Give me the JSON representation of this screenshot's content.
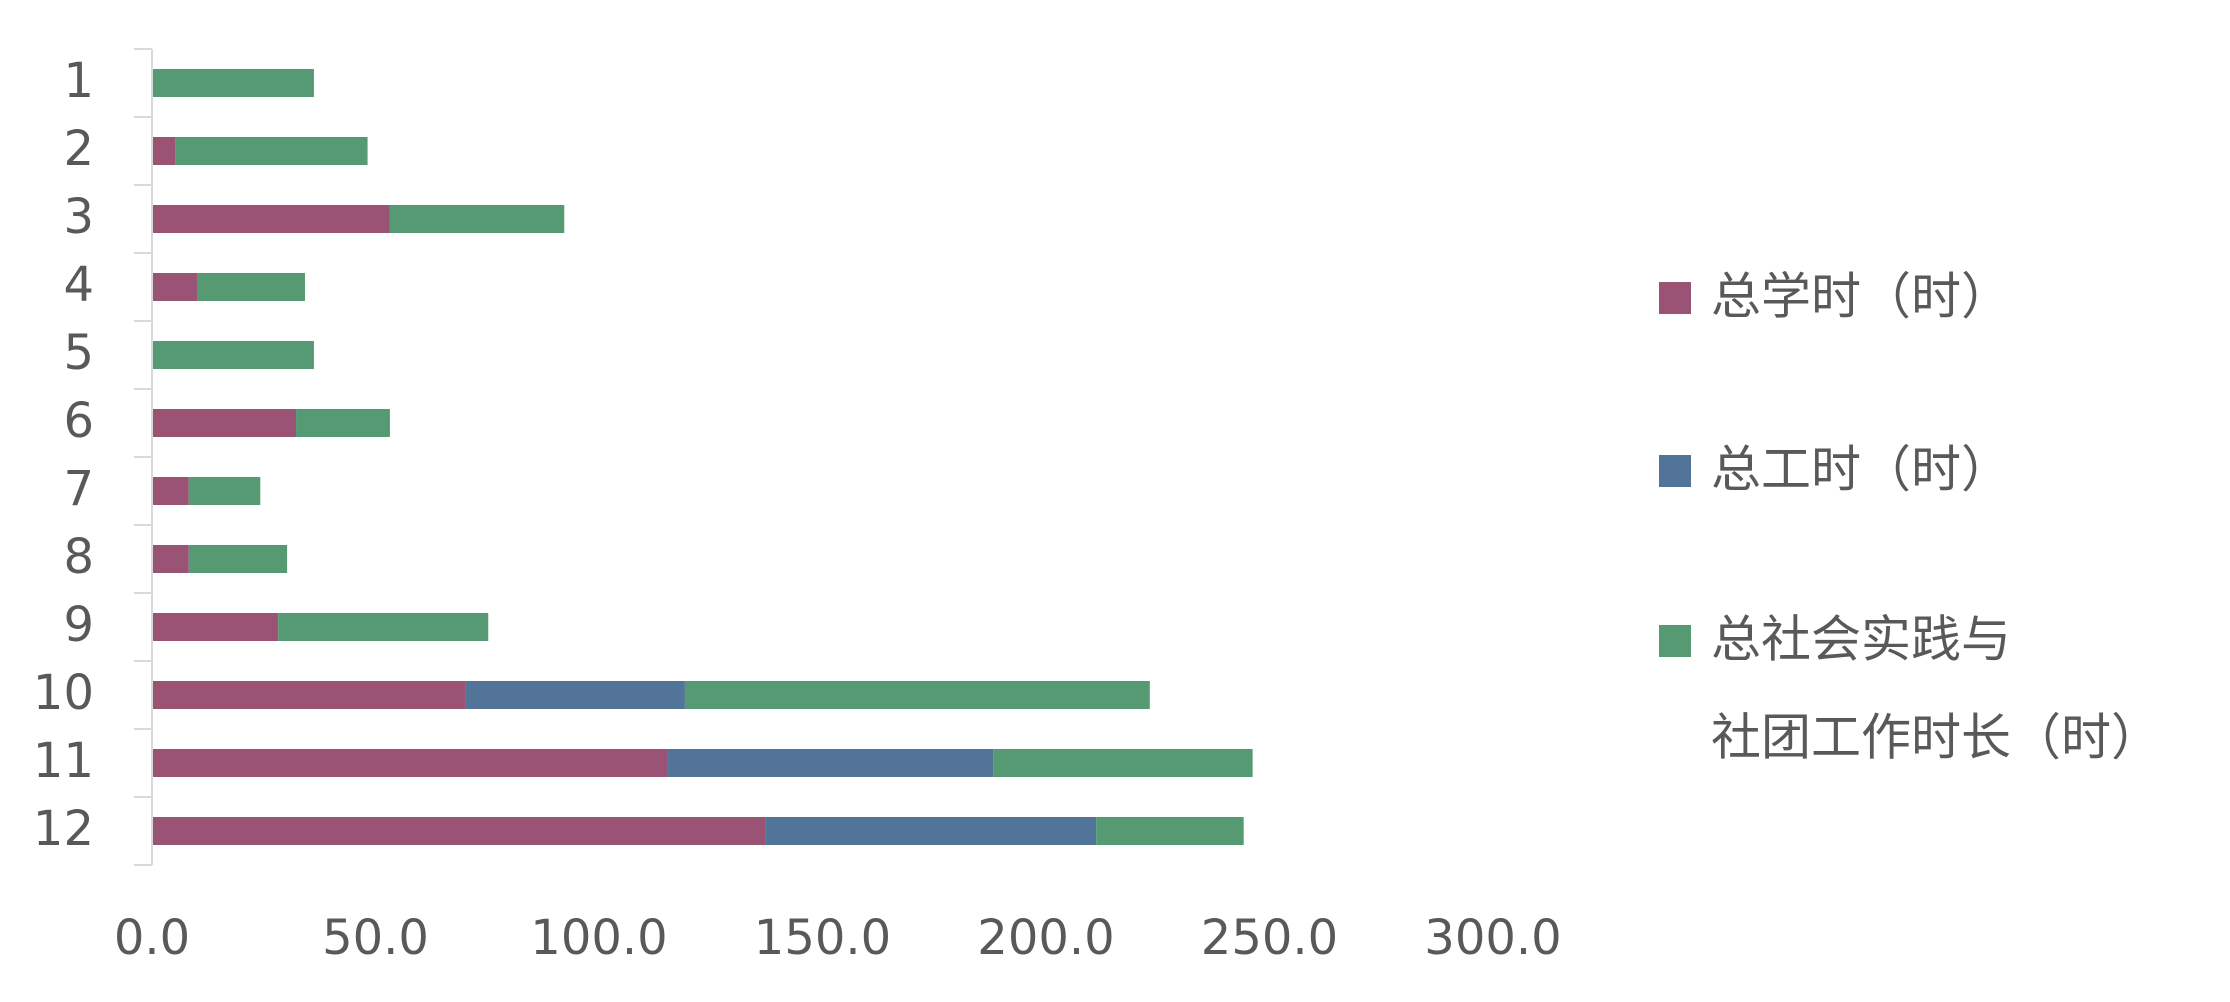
{
  "chart_data": {
    "type": "bar",
    "orientation": "horizontal",
    "stacked": true,
    "categories": [
      "1",
      "2",
      "3",
      "4",
      "5",
      "6",
      "7",
      "8",
      "9",
      "10",
      "11",
      "12"
    ],
    "series": [
      {
        "name": "总学时（时）",
        "color": "#9a5275",
        "values": [
          0,
          5,
          53,
          10,
          0,
          32,
          8,
          8,
          28,
          70,
          115,
          137
        ]
      },
      {
        "name": "总工时（时）",
        "color": "#527498",
        "values": [
          0,
          0,
          0,
          0,
          0,
          0,
          0,
          0,
          0,
          49,
          73,
          74
        ]
      },
      {
        "name": "总社会实践与社团工作时长（时）",
        "color": "#559a73",
        "values": [
          36,
          43,
          39,
          24,
          36,
          21,
          16,
          22,
          47,
          104,
          58,
          33
        ]
      }
    ],
    "legend_lines": [
      [
        "总学时（时）"
      ],
      [
        "总工时（时）"
      ],
      [
        "总社会实践与",
        "社团工作时长（时）"
      ]
    ],
    "x_ticks": [
      "0.0",
      "50.0",
      "100.0",
      "150.0",
      "200.0",
      "250.0",
      "300.0"
    ],
    "xlim": [
      0,
      300
    ],
    "title": "",
    "xlabel": "",
    "ylabel": "",
    "grid": false,
    "legend_position": "right"
  }
}
